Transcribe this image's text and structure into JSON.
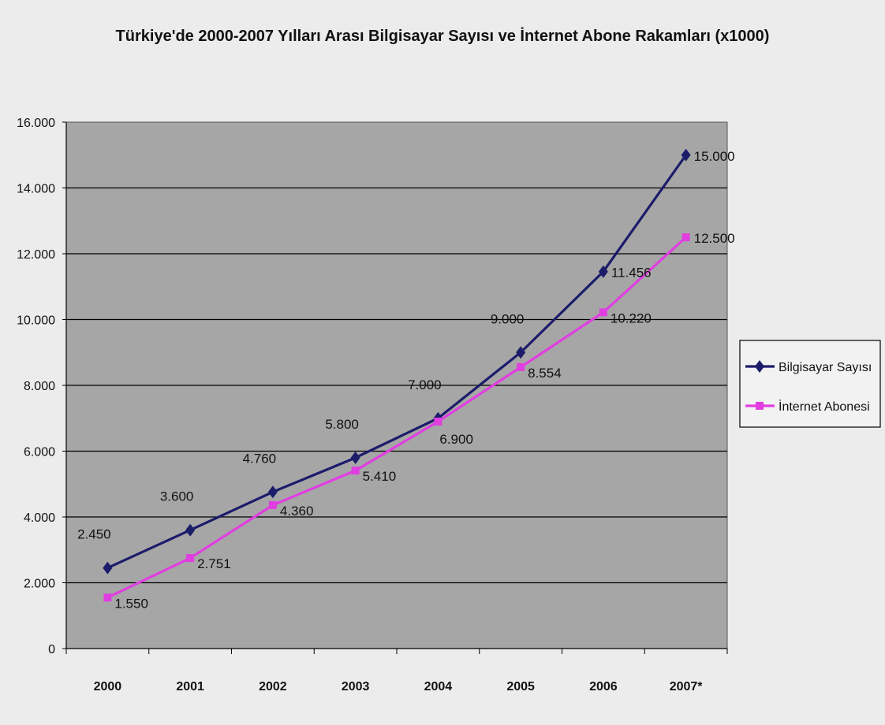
{
  "chart_data": {
    "type": "line",
    "title": "Türkiye'de 2000-2007 Yılları Arası Bilgisayar Sayısı ve İnternet Abone Rakamları (x1000)",
    "xlabel": "",
    "ylabel": "",
    "categories": [
      "2000",
      "2001",
      "2002",
      "2003",
      "2004",
      "2005",
      "2006",
      "2007*"
    ],
    "ylim": [
      0,
      16000
    ],
    "yticks": [
      0,
      2000,
      4000,
      6000,
      8000,
      10000,
      12000,
      14000,
      16000
    ],
    "ytick_labels": [
      "0",
      "2.000",
      "4.000",
      "6.000",
      "8.000",
      "10.000",
      "12.000",
      "14.000",
      "16.000"
    ],
    "grid": true,
    "legend_position": "right",
    "series": [
      {
        "name": "Bilgisayar Sayısı",
        "color": "#1c1c6b",
        "marker": "diamond",
        "values": [
          2450,
          3600,
          4760,
          5800,
          7000,
          9000,
          11456,
          15000
        ],
        "labels": [
          "2.450",
          "3.600",
          "4.760",
          "5.800",
          "7.000",
          "9.000",
          "11.456",
          "15.000"
        ]
      },
      {
        "name": "İnternet Abonesi",
        "color": "#e13ee1",
        "marker": "square",
        "values": [
          1550,
          2751,
          4360,
          5410,
          6900,
          8554,
          10220,
          12500
        ],
        "labels": [
          "1.550",
          "2.751",
          "4.360",
          "5.410",
          "6.900",
          "8.554",
          "10.220",
          "12.500"
        ]
      }
    ]
  }
}
